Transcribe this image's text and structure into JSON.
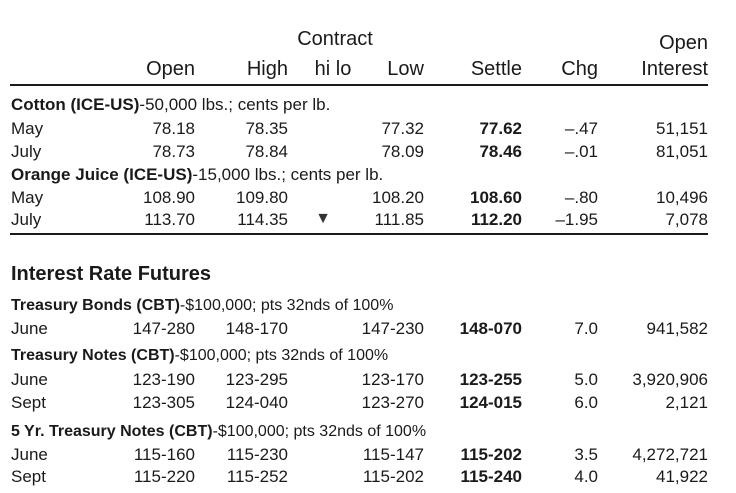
{
  "header": {
    "contract": "Contract",
    "open_top": "Open",
    "open": "Open",
    "high": "High",
    "hilo": "hi lo",
    "low": "Low",
    "settle": "Settle",
    "chg": "Chg",
    "interest": "Interest"
  },
  "commodities": [
    {
      "name": "Cotton (ICE-US)",
      "spec": "-50,000 lbs.; cents per lb.",
      "rows": [
        {
          "month": "May",
          "open": "78.18",
          "high": "78.35",
          "hilo": "",
          "low": "77.32",
          "settle": "77.62",
          "chg": "–.47",
          "oi": "51,151"
        },
        {
          "month": "July",
          "open": "78.73",
          "high": "78.84",
          "hilo": "",
          "low": "78.09",
          "settle": "78.46",
          "chg": "–.01",
          "oi": "81,051"
        }
      ]
    },
    {
      "name": "Orange Juice (ICE-US)",
      "spec": "-15,000 lbs.; cents per lb.",
      "rows": [
        {
          "month": "May",
          "open": "108.90",
          "high": "109.80",
          "hilo": "",
          "low": "108.20",
          "settle": "108.60",
          "chg": "–.80",
          "oi": "10,496"
        },
        {
          "month": "July",
          "open": "113.70",
          "high": "114.35",
          "hilo": "▼",
          "low": "111.85",
          "settle": "112.20",
          "chg": "–1.95",
          "oi": "7,078"
        }
      ]
    }
  ],
  "interest_section": {
    "title": "Interest Rate Futures",
    "groups": [
      {
        "name": "Treasury Bonds (CBT)",
        "spec": "-$100,000; pts 32nds of 100%",
        "rows": [
          {
            "month": "June",
            "open": "147-280",
            "high": "148-170",
            "low": "147-230",
            "settle": "148-070",
            "chg": "7.0",
            "oi": "941,582"
          }
        ]
      },
      {
        "name": "Treasury Notes (CBT)",
        "spec": "-$100,000; pts 32nds of 100%",
        "rows": [
          {
            "month": "June",
            "open": "123-190",
            "high": "123-295",
            "low": "123-170",
            "settle": "123-255",
            "chg": "5.0",
            "oi": "3,920,906"
          },
          {
            "month": "Sept",
            "open": "123-305",
            "high": "124-040",
            "low": "123-270",
            "settle": "124-015",
            "chg": "6.0",
            "oi": "2,121"
          }
        ]
      },
      {
        "name": "5 Yr. Treasury Notes (CBT)",
        "spec": "-$100,000; pts 32nds of 100%",
        "rows": [
          {
            "month": "June",
            "open": "115-160",
            "high": "115-230",
            "low": "115-147",
            "settle": "115-202",
            "chg": "3.5",
            "oi": "4,272,721"
          },
          {
            "month": "Sept",
            "open": "115-220",
            "high": "115-252",
            "low": "115-202",
            "settle": "115-240",
            "chg": "4.0",
            "oi": "41,922"
          }
        ]
      }
    ]
  }
}
